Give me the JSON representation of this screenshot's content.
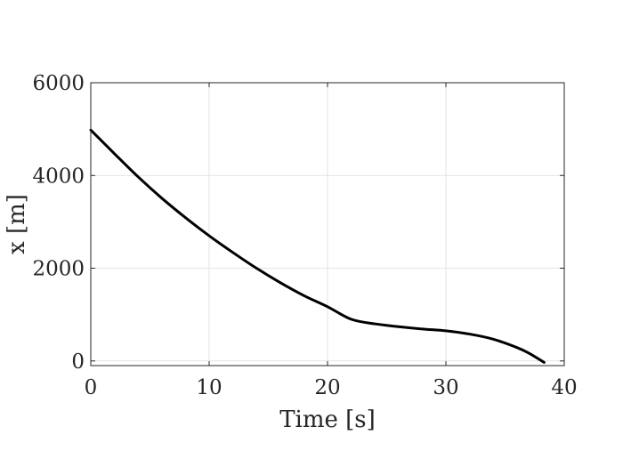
{
  "chart_data": {
    "type": "line",
    "title": "",
    "xlabel": "Time [s]",
    "ylabel": "x [m]",
    "xlim": [
      0,
      40
    ],
    "ylim": [
      -100,
      6000
    ],
    "xticks": [
      0,
      10,
      20,
      30,
      40
    ],
    "yticks": [
      0,
      2000,
      4000,
      6000
    ],
    "xtick_labels": [
      "0",
      "10",
      "20",
      "30",
      "40"
    ],
    "ytick_labels": [
      "0",
      "2000",
      "4000",
      "6000"
    ],
    "grid": true,
    "series": [
      {
        "color": "#000000",
        "x": [
          0,
          2,
          4,
          6,
          8,
          10,
          12,
          14,
          16,
          18,
          20,
          22,
          24,
          26,
          28,
          30,
          32,
          34,
          36,
          37,
          38.3
        ],
        "y": [
          4980,
          4470,
          3970,
          3510,
          3090,
          2700,
          2340,
          2000,
          1690,
          1410,
          1170,
          900,
          800,
          740,
          690,
          650,
          580,
          470,
          290,
          170,
          -30
        ]
      }
    ]
  }
}
